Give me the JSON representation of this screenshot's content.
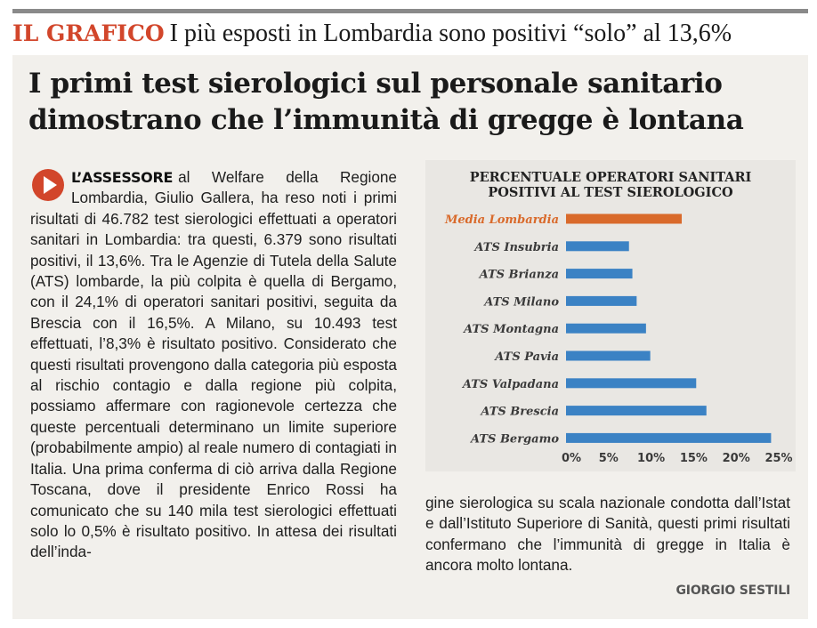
{
  "header": {
    "label": "IL GRAFICO",
    "title": "I più esposti in Lombardia sono positivi “solo” al 13,6%"
  },
  "headline": {
    "line1": "I primi test sierologici sul personale sanitario",
    "line2": "dimostrano che l’immunità di gregge è lontana"
  },
  "article": {
    "lead": "L’ASSESSORE",
    "body_left": "al Welfare della Regione Lombardia, Giulio Gallera, ha reso noti i primi risultati di 46.782 test sierologici effettuati a operatori sanitari in Lombardia: tra questi, 6.379 sono risultati positivi, il 13,6%. Tra le Agenzie di Tutela della Salute (ATS) lombarde, la più colpita è quella di Bergamo, con il 24,1% di operatori sanitari positivi, seguita da Brescia con il 16,5%. A Milano, su 10.493 test effettuati, l’8,3% è risultato positivo. Considerato che questi risultati provengono dalla categoria più esposta al rischio contagio e dalla regione più colpita, possiamo affermare con ragionevole certezza che queste percentuali determinano un limite superiore (probabilmente ampio) al reale numero di contagiati in Italia. Una prima conferma di ciò arriva dalla Regione Toscana, dove il presidente Enrico Rossi ha comunicato che su 140 mila test sierologici effettuati solo lo 0,5% è risultato positivo. In attesa dei risultati dell’inda-",
    "body_right": "gine sierologica su scala nazionale condotta dall’Istat e dall’Istituto Superiore di Sanità, questi primi risultati confermano che l’immunità di gregge in Italia è ancora molto lontana.",
    "author": "GIORGIO SESTILI"
  },
  "colors": {
    "accent": "#d2462b",
    "highlight_bar": "#d96a2b",
    "bar": "#3b82c4"
  },
  "chart_data": {
    "type": "bar",
    "orientation": "horizontal",
    "title_lines": [
      "PERCENTUALE OPERATORI SANITARI",
      "POSITIVI AL TEST SIEROLOGICO"
    ],
    "categories": [
      "Media Lombardia",
      "ATS Insubria",
      "ATS Brianza",
      "ATS Milano",
      "ATS Montagna",
      "ATS Pavia",
      "ATS Valpadana",
      "ATS Brescia",
      "ATS Bergamo"
    ],
    "values": [
      13.6,
      7.4,
      7.8,
      8.3,
      9.4,
      9.9,
      15.3,
      16.5,
      24.1
    ],
    "highlight_index": 0,
    "xlim": [
      0,
      25
    ],
    "x_ticks": [
      0,
      5,
      10,
      15,
      20,
      25
    ],
    "x_tick_labels": [
      "0%",
      "5%",
      "10%",
      "15%",
      "20%",
      "25%"
    ],
    "grid": false,
    "legend": "none"
  }
}
